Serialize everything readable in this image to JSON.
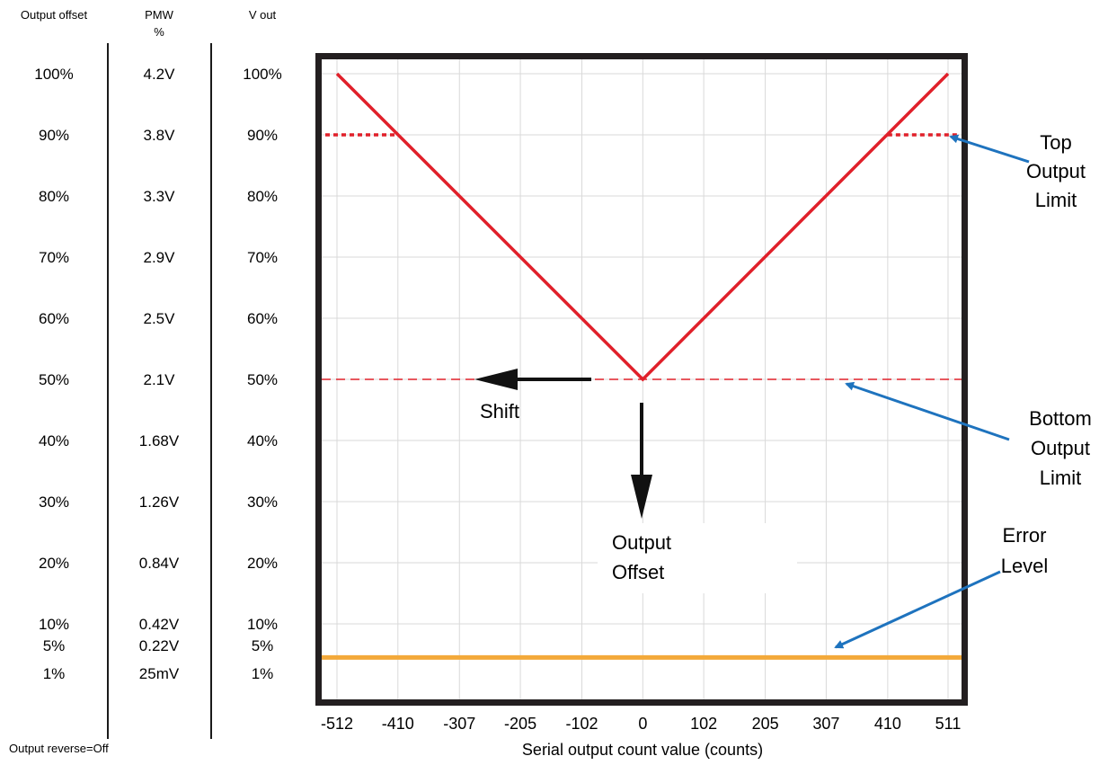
{
  "headers": {
    "offset": "Output offset",
    "pmw_line1": "PMW",
    "pmw_line2": "%",
    "vout": "V out"
  },
  "rows": [
    {
      "offset": "100%",
      "pmw": "4.2V",
      "vout": "100%",
      "level": 100
    },
    {
      "offset": "90%",
      "pmw": "3.8V",
      "vout": "90%",
      "level": 90
    },
    {
      "offset": "80%",
      "pmw": "3.3V",
      "vout": "80%",
      "level": 80
    },
    {
      "offset": "70%",
      "pmw": "2.9V",
      "vout": "70%",
      "level": 70
    },
    {
      "offset": "60%",
      "pmw": "2.5V",
      "vout": "60%",
      "level": 60
    },
    {
      "offset": "50%",
      "pmw": "2.1V",
      "vout": "50%",
      "level": 50
    },
    {
      "offset": "40%",
      "pmw": "1.68V",
      "vout": "40%",
      "level": 40
    },
    {
      "offset": "30%",
      "pmw": "1.26V",
      "vout": "30%",
      "level": 30
    },
    {
      "offset": "20%",
      "pmw": "0.84V",
      "vout": "20%",
      "level": 20
    },
    {
      "offset": "10%",
      "pmw": "0.42V",
      "vout": "10%",
      "level": 10
    },
    {
      "offset": "5%",
      "pmw": "0.22V",
      "vout": "5%",
      "level": 5
    },
    {
      "offset": "1%",
      "pmw": "25mV",
      "vout": "1%",
      "level": 1
    }
  ],
  "footer_note": "Output reverse=Off",
  "chart_data": {
    "type": "line",
    "xlabel": "Serial output count value (counts)",
    "x_ticks": [
      "-512",
      "-410",
      "-307",
      "-205",
      "-102",
      "0",
      "102",
      "205",
      "307",
      "410",
      "511"
    ],
    "x_tick_values": [
      -512,
      -410,
      -307,
      -205,
      -102,
      0,
      102,
      205,
      307,
      410,
      511
    ],
    "xlim": [
      -512,
      511
    ],
    "ylim": [
      0,
      100
    ],
    "grid": true,
    "series": [
      {
        "x": [
          -512,
          0,
          511
        ],
        "y": [
          100,
          50,
          100
        ],
        "color": "#e0202a",
        "style": "solid"
      }
    ],
    "reference_lines": [
      {
        "y": 90,
        "x_ranges": [
          [
            -512,
            -410
          ],
          [
            410,
            511
          ]
        ],
        "color": "#e0202a",
        "style": "dotted"
      },
      {
        "y": 50,
        "color": "#e0202a",
        "style": "dashed"
      },
      {
        "y": 4.5,
        "color": "#f3a93a",
        "style": "solid"
      }
    ],
    "annotations": {
      "shift": "Shift",
      "offset_line1": "Output",
      "offset_line2": "Offset",
      "top_limit": [
        "Top",
        "Output",
        "Limit"
      ],
      "bottom_limit": [
        "Bottom",
        "Output",
        "Limit"
      ],
      "error_level": [
        "Error",
        "Level"
      ]
    },
    "colors": {
      "curve": "#e0202a",
      "error_level": "#f3a93a",
      "annotation_arrow": "#1e73be",
      "frame": "#231f20",
      "grid": "#d9d9d9"
    }
  }
}
